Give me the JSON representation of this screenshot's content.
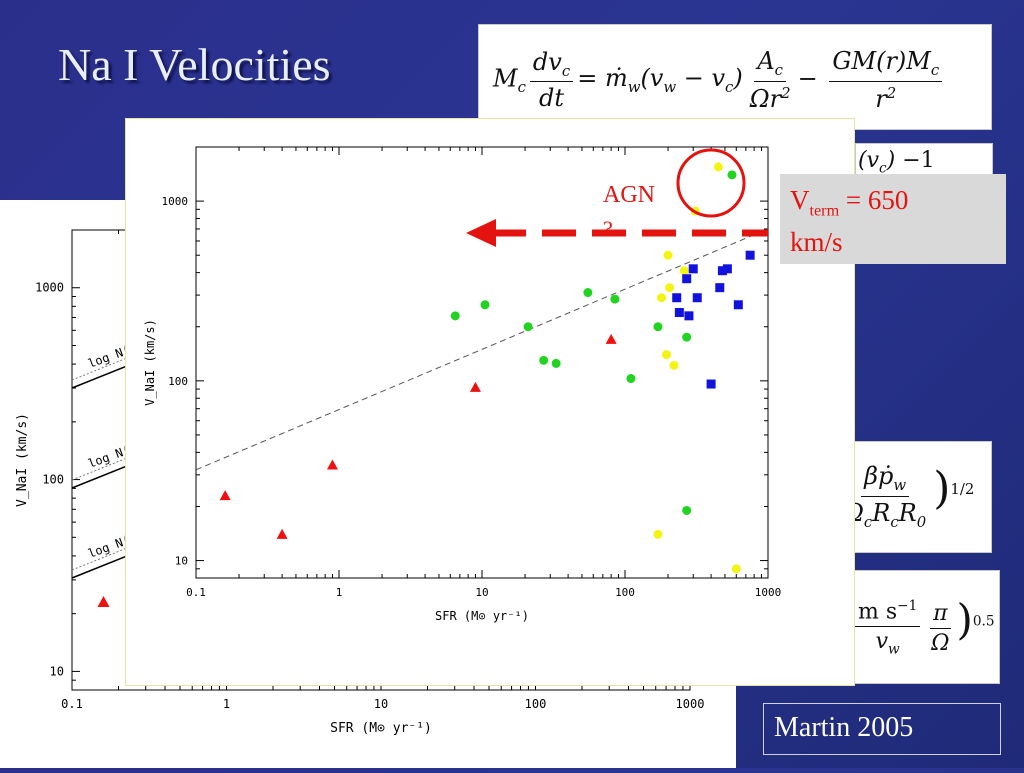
{
  "slide": {
    "title": "Na I Velocities",
    "vterm_main": "V",
    "vterm_sub": "term",
    "vterm_value": " = 650",
    "vterm_unit": "km/s",
    "credit": "Martin 2005",
    "agn_label": "AGN",
    "agn_qmark": "?"
  },
  "equations": {
    "eq1": "M_c dv_c/dt = ṁ_w(v_w − v_c) A_c/Ωr² − GM(r)M_c/r²",
    "eq3_fragment": "βṗ_w / Ω_c R_c R_0 )^1/2",
    "eq4_fragment": "m s^-1 π/Ω )^0.5"
  },
  "colors": {
    "background": "#2a3592",
    "green": "#22d322",
    "yellow": "#f4f414",
    "blue": "#1212dd",
    "red": "#ee1111",
    "arrow": "#e3130f"
  },
  "chart_data": [
    {
      "type": "scatter",
      "xlabel": "SFR (M⊙ yr⁻¹)",
      "ylabel": "V_NaI (km/s)",
      "x_scale": "log",
      "y_scale": "log",
      "xlim": [
        0.1,
        1000
      ],
      "ylim": [
        8,
        2000
      ],
      "x_ticks": [
        "0.1",
        "1",
        "10",
        "100",
        "1000"
      ],
      "y_ticks": [
        "10",
        "100",
        "1000"
      ],
      "trend_line": {
        "style": "dashed",
        "points": [
          [
            0.1,
            32
          ],
          [
            1000,
            700
          ]
        ]
      },
      "series": [
        {
          "marker": "circle",
          "color": "green",
          "points": [
            [
              6.5,
              230
            ],
            [
              10.5,
              265
            ],
            [
              21,
              200
            ],
            [
              27,
              130
            ],
            [
              33,
              125
            ],
            [
              55,
              310
            ],
            [
              85,
              285
            ],
            [
              110,
              103
            ],
            [
              170,
              200
            ],
            [
              270,
              175
            ],
            [
              270,
              19
            ],
            [
              560,
              1400
            ]
          ]
        },
        {
          "marker": "circle",
          "color": "yellow",
          "points": [
            [
              170,
              14
            ],
            [
              180,
              290
            ],
            [
              195,
              140
            ],
            [
              200,
              500
            ],
            [
              205,
              330
            ],
            [
              220,
              122
            ],
            [
              260,
              410
            ],
            [
              310,
              880
            ],
            [
              450,
              1550
            ],
            [
              600,
              9
            ]
          ]
        },
        {
          "marker": "square",
          "color": "blue",
          "points": [
            [
              230,
              290
            ],
            [
              240,
              240
            ],
            [
              270,
              370
            ],
            [
              280,
              230
            ],
            [
              300,
              420
            ],
            [
              320,
              290
            ],
            [
              400,
              96
            ],
            [
              460,
              330
            ],
            [
              480,
              410
            ],
            [
              520,
              420
            ],
            [
              620,
              265
            ],
            [
              750,
              500
            ]
          ]
        },
        {
          "marker": "triangle",
          "color": "red",
          "points": [
            [
              0.16,
              23
            ],
            [
              0.4,
              14
            ],
            [
              0.9,
              34
            ],
            [
              9,
              92
            ],
            [
              80,
              170
            ]
          ]
        }
      ],
      "annotations": [
        "AGN",
        "?"
      ]
    },
    {
      "type": "scatter",
      "xlabel": "SFR (M⊙ yr⁻¹)",
      "ylabel": "V_NaI (km/s)",
      "x_scale": "log",
      "y_scale": "log",
      "xlim": [
        0.1,
        1000
      ],
      "ylim": [
        8,
        2000
      ],
      "x_ticks": [
        "0.1",
        "1",
        "10",
        "100",
        "1000"
      ],
      "y_ticks": [
        "10",
        "100",
        "1000"
      ],
      "curve_labels": [
        "log N(",
        "log N(",
        "log N("
      ],
      "series": [
        {
          "marker": "triangle",
          "color": "red",
          "points": [
            [
              0.16,
              23
            ]
          ]
        },
        {
          "marker": "circle",
          "color": "yellow",
          "points": [
            [
              600,
              9
            ]
          ]
        }
      ]
    }
  ]
}
